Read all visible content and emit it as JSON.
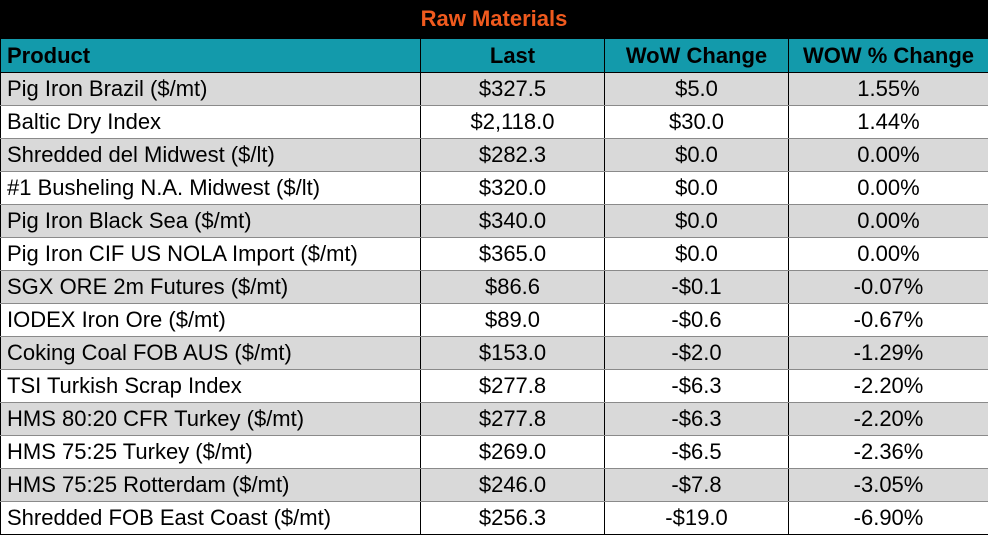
{
  "title": "Raw Materials",
  "columns": [
    "Product",
    "Last",
    "WoW Change",
    "WOW % Change"
  ],
  "rows": [
    {
      "product": "Pig Iron Brazil ($/mt)",
      "last": "$327.5",
      "wow": "$5.0",
      "pct": "1.55%"
    },
    {
      "product": "Baltic Dry Index",
      "last": "$2,118.0",
      "wow": "$30.0",
      "pct": "1.44%"
    },
    {
      "product": "Shredded del  Midwest ($/lt)",
      "last": "$282.3",
      "wow": "$0.0",
      "pct": "0.00%"
    },
    {
      "product": "#1 Busheling N.A. Midwest ($/lt)",
      "last": "$320.0",
      "wow": "$0.0",
      "pct": "0.00%"
    },
    {
      "product": "Pig Iron Black Sea ($/mt)",
      "last": "$340.0",
      "wow": "$0.0",
      "pct": "0.00%"
    },
    {
      "product": "Pig Iron CIF US NOLA Import ($/mt)",
      "last": "$365.0",
      "wow": "$0.0",
      "pct": "0.00%"
    },
    {
      "product": "SGX ORE 2m Futures ($/mt)",
      "last": "$86.6",
      "wow": "-$0.1",
      "pct": "-0.07%"
    },
    {
      "product": "IODEX  Iron Ore ($/mt)",
      "last": "$89.0",
      "wow": "-$0.6",
      "pct": "-0.67%"
    },
    {
      "product": "Coking Coal FOB AUS ($/mt)",
      "last": "$153.0",
      "wow": "-$2.0",
      "pct": "-1.29%"
    },
    {
      "product": "TSI Turkish Scrap Index",
      "last": "$277.8",
      "wow": "-$6.3",
      "pct": "-2.20%"
    },
    {
      "product": "HMS 80:20 CFR Turkey ($/mt)",
      "last": "$277.8",
      "wow": "-$6.3",
      "pct": "-2.20%"
    },
    {
      "product": "HMS 75:25 Turkey ($/mt)",
      "last": "$269.0",
      "wow": "-$6.5",
      "pct": "-2.36%"
    },
    {
      "product": "HMS 75:25 Rotterdam ($/mt)",
      "last": "$246.0",
      "wow": "-$7.8",
      "pct": "-3.05%"
    },
    {
      "product": "Shredded FOB East Coast ($/mt)",
      "last": "$256.3",
      "wow": "-$19.0",
      "pct": "-6.90%"
    }
  ],
  "colors": {
    "title_background": "#000000",
    "title_text": "#f05a1e",
    "header_background": "#139aab",
    "stripe_background": "#d9d9d9"
  }
}
